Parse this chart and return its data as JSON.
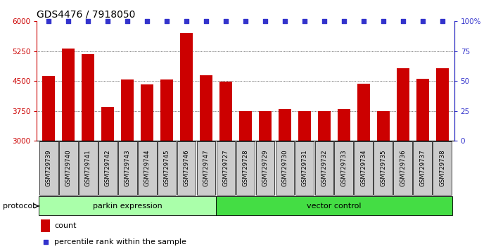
{
  "title": "GDS4476 / 7918050",
  "samples": [
    "GSM729739",
    "GSM729740",
    "GSM729741",
    "GSM729742",
    "GSM729743",
    "GSM729744",
    "GSM729745",
    "GSM729746",
    "GSM729747",
    "GSM729727",
    "GSM729728",
    "GSM729729",
    "GSM729730",
    "GSM729731",
    "GSM729732",
    "GSM729733",
    "GSM729734",
    "GSM729735",
    "GSM729736",
    "GSM729737",
    "GSM729738"
  ],
  "counts": [
    4620,
    5320,
    5180,
    3850,
    4540,
    4420,
    4530,
    5700,
    4650,
    4490,
    3740,
    3740,
    3800,
    3740,
    3740,
    3800,
    4430,
    3750,
    4820,
    4560,
    4820
  ],
  "parkin_expression_count": 9,
  "vector_control_count": 12,
  "bar_color": "#CC0000",
  "dot_color": "#3333CC",
  "parkin_bg": "#AAFFAA",
  "vector_bg": "#44DD44",
  "sample_bg": "#CCCCCC",
  "left_axis_color": "#CC0000",
  "right_axis_color": "#3333CC",
  "ylim_left": [
    3000,
    6000
  ],
  "ylim_right": [
    0,
    100
  ],
  "yticks_left": [
    3000,
    3750,
    4500,
    5250,
    6000
  ],
  "yticks_right": [
    0,
    25,
    50,
    75,
    100
  ],
  "hlines": [
    3750,
    4500,
    5250
  ],
  "protocol_label": "protocol",
  "parkin_label": "parkin expression",
  "vector_label": "vector control",
  "legend_count_label": "count",
  "legend_pct_label": "percentile rank within the sample",
  "title_fontsize": 10,
  "tick_fontsize": 7.5,
  "label_fontsize": 8,
  "bar_width": 0.65
}
